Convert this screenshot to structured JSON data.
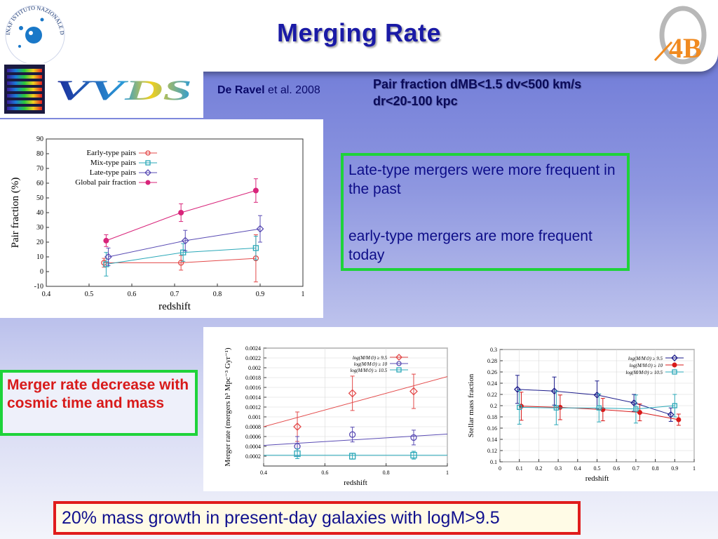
{
  "title": "Merging Rate",
  "logos": {
    "a4b_text": "4B",
    "inaf_text": "INAF ISTITUTO NAZIONALE DI ASTROFISICA",
    "vvds_text": "VVDS"
  },
  "reference": {
    "author": "De Ravel",
    "suffix": "et al. 2008"
  },
  "pair_note": [
    "Pair fraction dMB<1.5 dv<500 km/s",
    "dr<20-100 kpc"
  ],
  "textbox": {
    "line1": "Late-type mergers were more frequent in the past",
    "line2": "early-type mergers are more frequent today"
  },
  "merger_box": "Merger rate decrease with cosmic time and mass",
  "footer": "20% mass growth in present-day galaxies with logM>9.5",
  "colors": {
    "title": "#1a1aa6",
    "green_border": "#1ed33a",
    "red_border": "#e01c1c",
    "red_text": "#d81a1a"
  },
  "chart_data": [
    {
      "type": "scatter",
      "xlabel": "redshift",
      "ylabel": "Pair fraction (%)",
      "xlim": [
        0.4,
        1.0
      ],
      "ylim": [
        -10,
        90
      ],
      "xticks": [
        "0.4",
        "0.5",
        "0.6",
        "0.7",
        "0.8",
        "0.9",
        "1"
      ],
      "yticks": [
        "-10",
        "0",
        "10",
        "20",
        "30",
        "40",
        "50",
        "60",
        "70",
        "80",
        "90"
      ],
      "legend_position": "top-left",
      "series": [
        {
          "name": "Early-type pairs",
          "color": "#e34a4a",
          "marker": "circle",
          "x": [
            0.535,
            0.715,
            0.89
          ],
          "y": [
            6,
            6,
            9
          ],
          "err": [
            3,
            5,
            16
          ]
        },
        {
          "name": "Mix-type pairs",
          "color": "#2aa8b8",
          "marker": "square",
          "x": [
            0.54,
            0.72,
            0.89
          ],
          "y": [
            5,
            13,
            16
          ],
          "err": [
            8,
            6,
            8
          ]
        },
        {
          "name": "Late-type pairs",
          "color": "#5a4cb4",
          "marker": "diamond",
          "x": [
            0.545,
            0.725,
            0.9
          ],
          "y": [
            10,
            21,
            29
          ],
          "err": [
            6,
            7,
            9
          ]
        },
        {
          "name": "Global pair fraction",
          "color": "#d8247a",
          "marker": "dot",
          "x": [
            0.54,
            0.715,
            0.89
          ],
          "y": [
            21,
            40,
            55
          ],
          "err": [
            4,
            6,
            8
          ]
        }
      ]
    },
    {
      "type": "scatter",
      "xlabel": "redshift",
      "ylabel": "Merger rate (mergers h³ Mpc⁻³ Gyr⁻¹)",
      "xlim": [
        0.4,
        1.0
      ],
      "ylim": [
        0,
        0.0024
      ],
      "xticks": [
        "0.4",
        "0.6",
        "0.8",
        "1"
      ],
      "yticks": [
        "0.0002",
        "0.0004",
        "0.0006",
        "0.0008",
        "0.001",
        "0.0012",
        "0.0014",
        "0.0016",
        "0.0018",
        "0.002",
        "0.0022",
        "0.0024"
      ],
      "legend_position": "top-right",
      "series": [
        {
          "name": "log(M/M⊙) ≥ 9.5",
          "color": "#e34a4a",
          "marker": "diamond",
          "x": [
            0.51,
            0.69,
            0.89
          ],
          "y": [
            0.0008,
            0.00148,
            0.00152
          ],
          "err": [
            0.0003,
            0.00035,
            0.00035
          ],
          "fit": [
            0.0008,
            0.00182
          ]
        },
        {
          "name": "log(M/M⊙) ≥ 10",
          "color": "#5a4cb4",
          "marker": "circle",
          "x": [
            0.51,
            0.69,
            0.89
          ],
          "y": [
            0.0004,
            0.00064,
            0.00058
          ],
          "err": [
            0.0002,
            0.00015,
            0.00015
          ],
          "fit": [
            0.00042,
            0.00065
          ]
        },
        {
          "name": "log(M/M⊙) ≥ 10.5",
          "color": "#2aa8b8",
          "marker": "square",
          "x": [
            0.51,
            0.69,
            0.89
          ],
          "y": [
            0.00025,
            0.0002,
            0.00022
          ],
          "err": [
            0.0001,
            6e-05,
            8e-05
          ],
          "fit": [
            0.00022,
            0.00022
          ]
        }
      ]
    },
    {
      "type": "line",
      "xlabel": "redshift",
      "ylabel": "Stellar mass fraction",
      "xlim": [
        0,
        1.0
      ],
      "ylim": [
        0.1,
        0.3
      ],
      "xticks": [
        "0",
        "0.1",
        "0.2",
        "0.3",
        "0.4",
        "0.5",
        "0.6",
        "0.7",
        "0.8",
        "0.9",
        "1"
      ],
      "yticks": [
        "0.1",
        "0.12",
        "0.14",
        "0.16",
        "0.18",
        "0.2",
        "0.22",
        "0.24",
        "0.26",
        "0.28",
        "0.3"
      ],
      "legend_position": "top-right",
      "series": [
        {
          "name": "log(M/M⊙) ≥ 9.5",
          "color": "#1a1a8a",
          "marker": "diamond",
          "x": [
            0.09,
            0.28,
            0.5,
            0.69,
            0.88
          ],
          "y": [
            0.229,
            0.226,
            0.219,
            0.205,
            0.184
          ],
          "err": [
            0.025,
            0.025,
            0.025,
            0.015,
            0.012
          ]
        },
        {
          "name": "log(M/M⊙) ≥ 10",
          "color": "#d81a1a",
          "marker": "dot",
          "x": [
            0.11,
            0.31,
            0.53,
            0.72,
            0.92
          ],
          "y": [
            0.199,
            0.197,
            0.193,
            0.188,
            0.175
          ],
          "err": [
            0.025,
            0.022,
            0.02,
            0.015,
            0.01
          ]
        },
        {
          "name": "log(M/M⊙) ≥ 10.5",
          "color": "#2aa8b8",
          "marker": "square",
          "x": [
            0.1,
            0.29,
            0.51,
            0.7,
            0.9
          ],
          "y": [
            0.197,
            0.196,
            0.196,
            0.194,
            0.2
          ],
          "err": [
            0.03,
            0.03,
            0.025,
            0.025,
            0.02
          ]
        }
      ]
    }
  ]
}
